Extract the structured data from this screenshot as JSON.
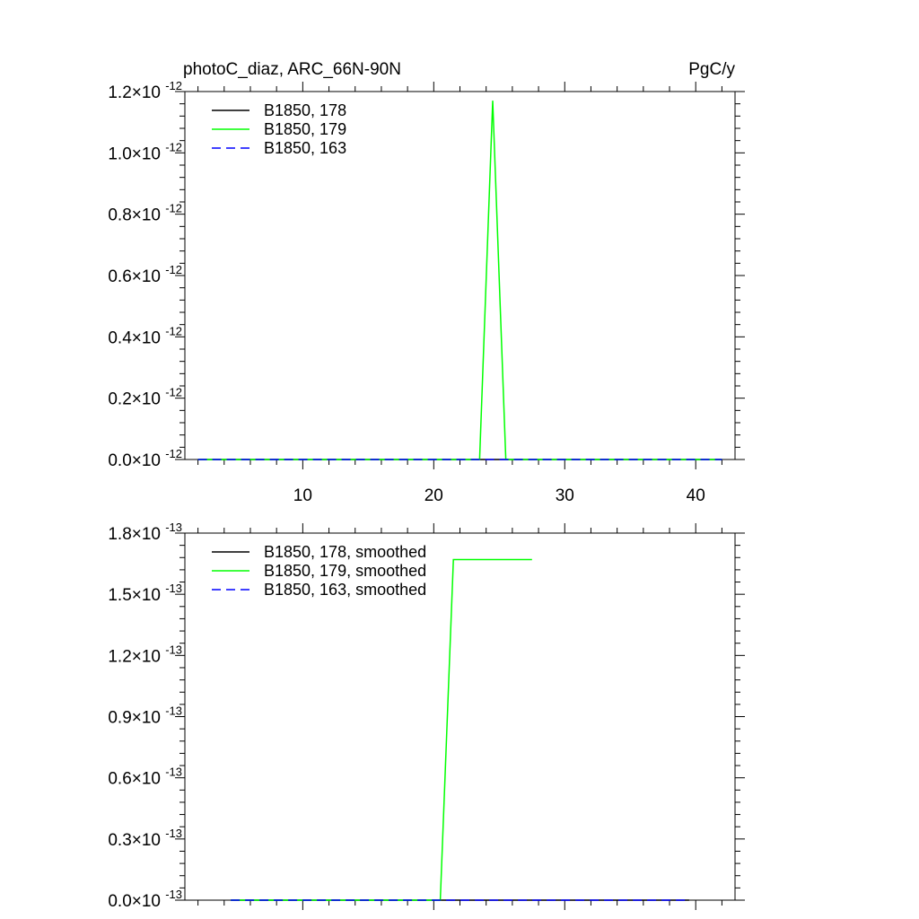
{
  "header": {
    "title": "photoC_diaz, ARC_66N-90N",
    "units": "PgC/y"
  },
  "chart_data": [
    {
      "type": "line",
      "xlim": [
        1,
        43
      ],
      "ylim": [
        0,
        1.2e-12
      ],
      "x_ticks": [
        10,
        20,
        30,
        40
      ],
      "x_tick_labels": [
        "10",
        "20",
        "30",
        "40"
      ],
      "y_ticks": [
        0,
        2e-13,
        4e-13,
        6e-13,
        8e-13,
        1e-12,
        1.2e-12
      ],
      "y_tick_mantissas": [
        "0.0",
        "0.2",
        "0.4",
        "0.6",
        "0.8",
        "1.0",
        "1.2"
      ],
      "y_exponent": "-12",
      "legend_position": "top-left",
      "series": [
        {
          "name": "B1850, 178",
          "color": "#000000",
          "dash": "solid",
          "x": [
            2,
            42
          ],
          "y": [
            0,
            0
          ]
        },
        {
          "name": "B1850, 179",
          "color": "#00ff00",
          "dash": "solid",
          "x": [
            2,
            23.5,
            24.5,
            25.5,
            42
          ],
          "y": [
            0,
            0,
            1.17e-12,
            0,
            0
          ]
        },
        {
          "name": "B1850, 163",
          "color": "#0000ff",
          "dash": "dashed",
          "x": [
            2,
            42
          ],
          "y": [
            0,
            0
          ]
        }
      ]
    },
    {
      "type": "line",
      "xlim": [
        1,
        43
      ],
      "ylim": [
        0,
        1.8e-13
      ],
      "x_ticks": [
        10,
        20,
        30,
        40
      ],
      "x_tick_labels": [],
      "y_ticks": [
        0,
        3e-14,
        6e-14,
        9e-14,
        1.2e-13,
        1.5e-13,
        1.8e-13
      ],
      "y_tick_mantissas": [
        "0.0",
        "0.3",
        "0.6",
        "0.9",
        "1.2",
        "1.5",
        "1.8"
      ],
      "y_exponent": "-13",
      "legend_position": "top-left",
      "series": [
        {
          "name": "B1850, 178, smoothed",
          "color": "#000000",
          "dash": "solid",
          "x": [
            4.5,
            39.5
          ],
          "y": [
            0,
            0
          ]
        },
        {
          "name": "B1850, 179, smoothed",
          "color": "#00ff00",
          "dash": "solid",
          "x": [
            4.5,
            20.5,
            21.5,
            27.5
          ],
          "y": [
            0,
            0,
            1.67e-13,
            1.67e-13
          ]
        },
        {
          "name": "B1850, 163, smoothed",
          "color": "#0000ff",
          "dash": "dashed",
          "x": [
            4.5,
            39.5
          ],
          "y": [
            0,
            0
          ]
        }
      ]
    }
  ]
}
